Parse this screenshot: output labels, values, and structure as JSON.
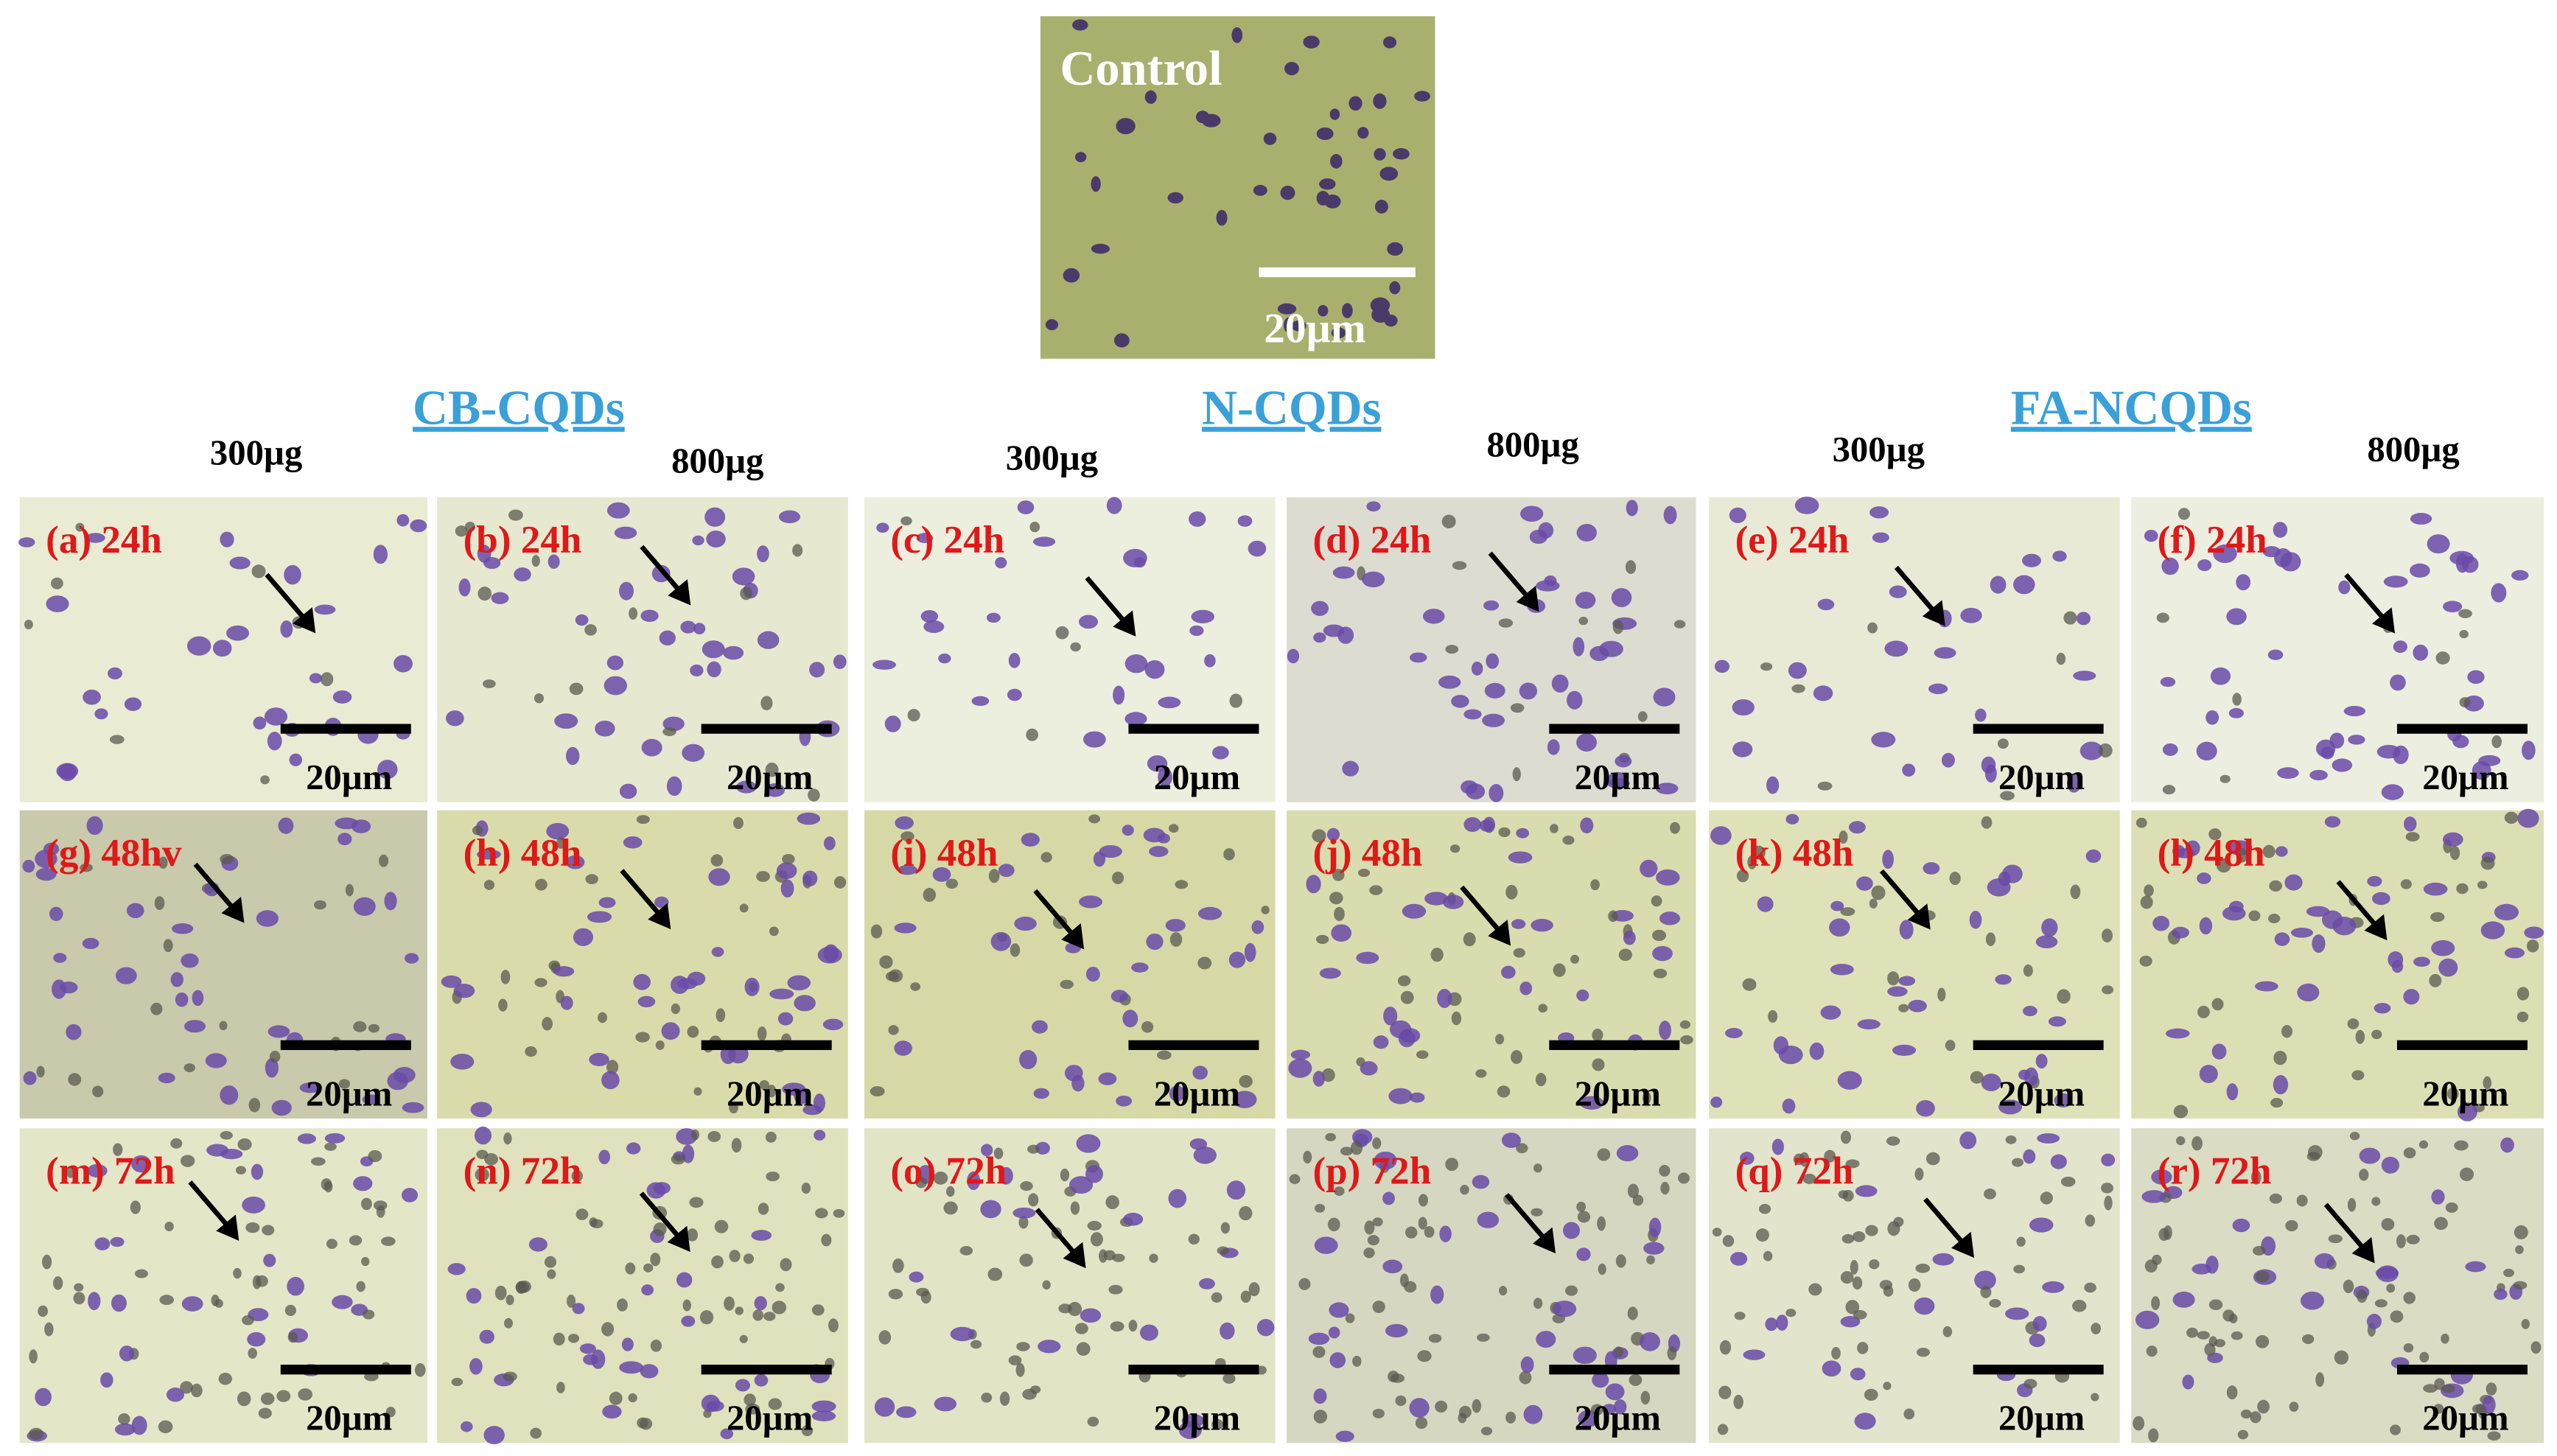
{
  "control": {
    "label": "Control",
    "scale": "20µm"
  },
  "groups": [
    {
      "name": "CB-CQDs",
      "doses": [
        "300µg",
        "800µg"
      ]
    },
    {
      "name": "N-CQDs",
      "doses": [
        "300µg",
        "800µg"
      ]
    },
    {
      "name": "FA-NCQDs",
      "doses": [
        "300µg",
        "800µg"
      ]
    }
  ],
  "panels": [
    {
      "label": "(a) 24h",
      "scale": "20µm"
    },
    {
      "label": "(b) 24h",
      "scale": "20µm"
    },
    {
      "label": "(c) 24h",
      "scale": "20µm"
    },
    {
      "label": "(d) 24h",
      "scale": "20µm"
    },
    {
      "label": "(e) 24h",
      "scale": "20µm"
    },
    {
      "label": "(f) 24h",
      "scale": "20µm"
    },
    {
      "label": "(g) 48hv",
      "scale": "20µm"
    },
    {
      "label": "(h) 48h",
      "scale": "20µm"
    },
    {
      "label": "(i) 48h",
      "scale": "20µm"
    },
    {
      "label": "(j) 48h",
      "scale": "20µm"
    },
    {
      "label": "(k) 48h",
      "scale": "20µm"
    },
    {
      "label": "(l) 48h",
      "scale": "20µm"
    },
    {
      "label": "(m) 72h",
      "scale": "20µm"
    },
    {
      "label": "(n) 72h",
      "scale": "20µm"
    },
    {
      "label": "(o) 72h",
      "scale": "20µm"
    },
    {
      "label": "(p) 72h",
      "scale": "20µm"
    },
    {
      "label": "(q) 72h",
      "scale": "20µm"
    },
    {
      "label": "(r) 72h",
      "scale": "20µm"
    }
  ]
}
